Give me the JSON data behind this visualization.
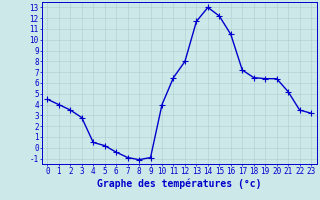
{
  "x": [
    0,
    1,
    2,
    3,
    4,
    5,
    6,
    7,
    8,
    9,
    10,
    11,
    12,
    13,
    14,
    15,
    16,
    17,
    18,
    19,
    20,
    21,
    22,
    23
  ],
  "y": [
    4.5,
    4.0,
    3.5,
    2.8,
    0.5,
    0.2,
    -0.4,
    -0.9,
    -1.1,
    -0.9,
    4.0,
    6.5,
    8.0,
    11.7,
    13.0,
    12.2,
    10.5,
    7.2,
    6.5,
    6.4,
    6.4,
    5.2,
    3.5,
    3.2
  ],
  "line_color": "#0000cc",
  "marker": "+",
  "markersize": 4,
  "linewidth": 1.0,
  "xlabel": "Graphe des températures (°c)",
  "xlabel_fontsize": 7,
  "background_color": "#cce8e8",
  "grid_color": "#aacccc",
  "xlim": [
    -0.5,
    23.5
  ],
  "ylim": [
    -1.5,
    13.5
  ],
  "yticks": [
    -1,
    0,
    1,
    2,
    3,
    4,
    5,
    6,
    7,
    8,
    9,
    10,
    11,
    12,
    13
  ],
  "xticks": [
    0,
    1,
    2,
    3,
    4,
    5,
    6,
    7,
    8,
    9,
    10,
    11,
    12,
    13,
    14,
    15,
    16,
    17,
    18,
    19,
    20,
    21,
    22,
    23
  ],
  "tick_fontsize": 5.5,
  "axes_color": "#0000cc",
  "label_color": "#0000cc",
  "xlabel_fontweight": "bold"
}
